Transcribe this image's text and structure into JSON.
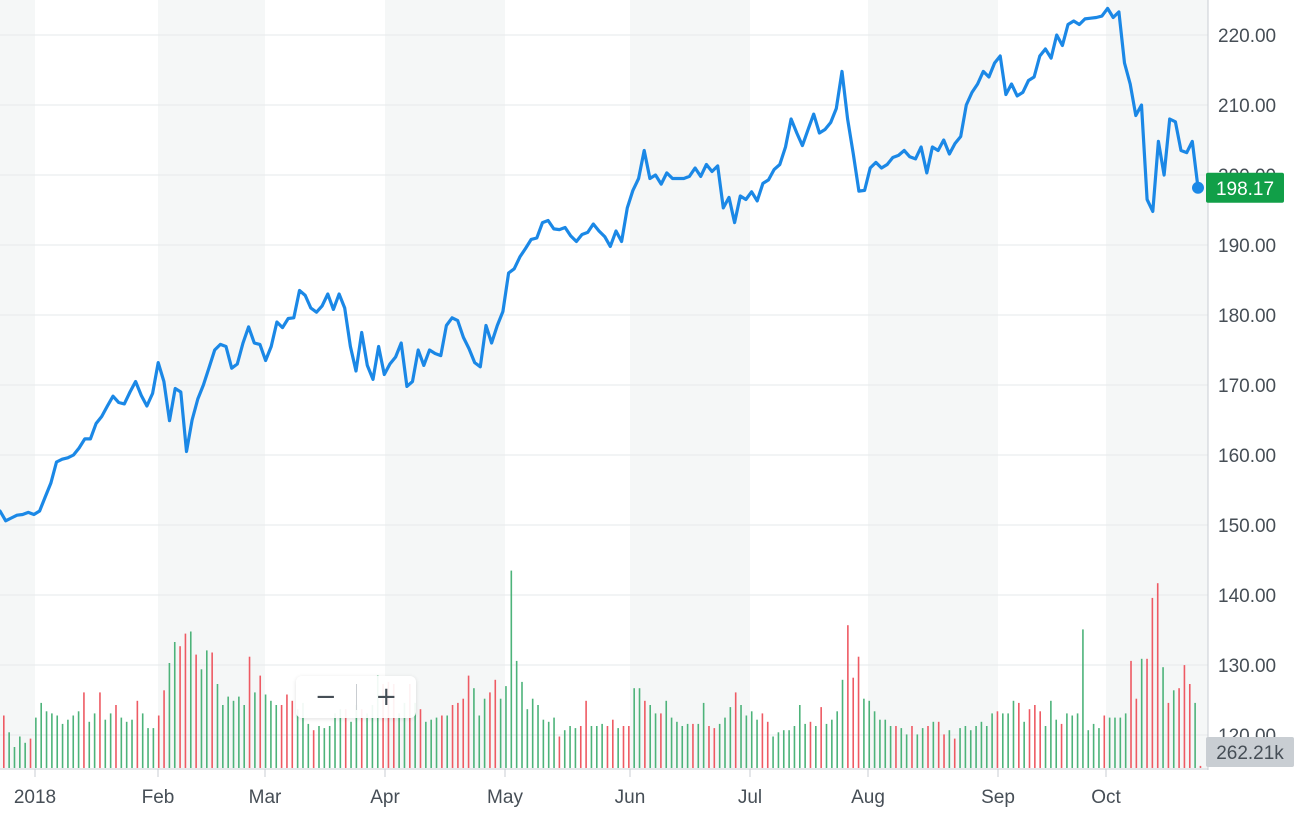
{
  "chart_data": {
    "type": "line",
    "series": [
      {
        "values": [
          152.0,
          150.6,
          151.0,
          151.4,
          151.5,
          151.8,
          151.5,
          152.0,
          154.0,
          156.0,
          159.0,
          159.4,
          159.6,
          160.0,
          161.0,
          162.3,
          162.3,
          164.5,
          165.5,
          167.0,
          168.4,
          167.5,
          167.3,
          169.0,
          170.5,
          168.5,
          167.0,
          168.8,
          173.2,
          170.5,
          164.9,
          169.5,
          169.0,
          160.5,
          165.0,
          168.0,
          170.0,
          172.5,
          175.0,
          175.8,
          175.5,
          172.4,
          173.0,
          176.0,
          178.3,
          176.0,
          175.8,
          173.5,
          175.5,
          179.0,
          178.2,
          179.5,
          179.6,
          183.5,
          182.8,
          181.0,
          180.4,
          181.3,
          183.0,
          180.8,
          183.0,
          181.0,
          175.5,
          172.0,
          177.5,
          172.8,
          170.8,
          175.5,
          171.5,
          173.0,
          174.0,
          176.0,
          169.8,
          170.5,
          175.0,
          172.8,
          175.0,
          174.5,
          174.2,
          178.5,
          179.6,
          179.2,
          176.8,
          175.2,
          173.2,
          172.6,
          178.5,
          176.0,
          178.5,
          180.5,
          186.0,
          186.6,
          188.3,
          189.5,
          190.8,
          191.0,
          193.2,
          193.5,
          192.3,
          192.2,
          192.5,
          191.3,
          190.5,
          191.5,
          191.8,
          193.0,
          192.0,
          191.2,
          189.8,
          192.0,
          190.5,
          195.3,
          197.8,
          199.5,
          203.5,
          199.5,
          200.0,
          198.7,
          200.3,
          199.5,
          199.5,
          199.5,
          199.8,
          201.0,
          199.8,
          201.5,
          200.5,
          201.3,
          195.3,
          196.8,
          193.2,
          197.0,
          196.5,
          197.6,
          196.3,
          198.8,
          199.3,
          200.8,
          201.5,
          204.0,
          208.0,
          206.0,
          204.2,
          206.5,
          208.7,
          206.0,
          206.5,
          207.5,
          209.5,
          214.8,
          208.0,
          203.0,
          197.7,
          197.8,
          201.0,
          201.8,
          201.0,
          201.5,
          202.5,
          202.8,
          203.5,
          202.6,
          202.3,
          204.0,
          200.3,
          204.0,
          203.5,
          205.0,
          203.0,
          204.5,
          205.5,
          210.0,
          211.8,
          213.0,
          214.8,
          214.0,
          216.0,
          217.0,
          211.5,
          213.0,
          211.3,
          211.8,
          213.5,
          214.0,
          217.0,
          218.0,
          216.7,
          220.0,
          218.5,
          221.5,
          222.0,
          221.5,
          222.3,
          222.4,
          222.5,
          222.7,
          223.8,
          222.5,
          223.3,
          216.0,
          213.0,
          208.5,
          210.0,
          196.5,
          194.8,
          204.8,
          200.0,
          208.0,
          207.6,
          203.5,
          203.2,
          204.8,
          198.2
        ],
        "color": "#1b88e6"
      }
    ],
    "volume": [
      {
        "h": 0.25,
        "up": false
      },
      {
        "h": 0.17,
        "up": true
      },
      {
        "h": 0.1,
        "up": true
      },
      {
        "h": 0.15,
        "up": true
      },
      {
        "h": 0.12,
        "up": true
      },
      {
        "h": 0.14,
        "up": false
      },
      {
        "h": 0.24,
        "up": true
      },
      {
        "h": 0.31,
        "up": true
      },
      {
        "h": 0.27,
        "up": true
      },
      {
        "h": 0.26,
        "up": true
      },
      {
        "h": 0.25,
        "up": true
      },
      {
        "h": 0.21,
        "up": true
      },
      {
        "h": 0.23,
        "up": true
      },
      {
        "h": 0.25,
        "up": true
      },
      {
        "h": 0.27,
        "up": true
      },
      {
        "h": 0.36,
        "up": false
      },
      {
        "h": 0.22,
        "up": true
      },
      {
        "h": 0.26,
        "up": true
      },
      {
        "h": 0.36,
        "up": false
      },
      {
        "h": 0.23,
        "up": true
      },
      {
        "h": 0.26,
        "up": true
      },
      {
        "h": 0.3,
        "up": false
      },
      {
        "h": 0.24,
        "up": true
      },
      {
        "h": 0.22,
        "up": true
      },
      {
        "h": 0.23,
        "up": true
      },
      {
        "h": 0.32,
        "up": false
      },
      {
        "h": 0.26,
        "up": true
      },
      {
        "h": 0.19,
        "up": true
      },
      {
        "h": 0.19,
        "up": true
      },
      {
        "h": 0.25,
        "up": false
      },
      {
        "h": 0.37,
        "up": false
      },
      {
        "h": 0.5,
        "up": true
      },
      {
        "h": 0.6,
        "up": true
      },
      {
        "h": 0.58,
        "up": false
      },
      {
        "h": 0.64,
        "up": false
      },
      {
        "h": 0.65,
        "up": true
      },
      {
        "h": 0.54,
        "up": false
      },
      {
        "h": 0.47,
        "up": true
      },
      {
        "h": 0.56,
        "up": true
      },
      {
        "h": 0.55,
        "up": false
      },
      {
        "h": 0.4,
        "up": true
      },
      {
        "h": 0.3,
        "up": true
      },
      {
        "h": 0.34,
        "up": true
      },
      {
        "h": 0.32,
        "up": true
      },
      {
        "h": 0.34,
        "up": true
      },
      {
        "h": 0.3,
        "up": true
      },
      {
        "h": 0.53,
        "up": false
      },
      {
        "h": 0.36,
        "up": true
      },
      {
        "h": 0.44,
        "up": false
      },
      {
        "h": 0.35,
        "up": true
      },
      {
        "h": 0.32,
        "up": true
      },
      {
        "h": 0.3,
        "up": true
      },
      {
        "h": 0.3,
        "up": false
      },
      {
        "h": 0.35,
        "up": false
      },
      {
        "h": 0.32,
        "up": false
      },
      {
        "h": 0.28,
        "up": true
      },
      {
        "h": 0.31,
        "up": true
      },
      {
        "h": 0.21,
        "up": true
      },
      {
        "h": 0.18,
        "up": false
      },
      {
        "h": 0.2,
        "up": true
      },
      {
        "h": 0.19,
        "up": true
      },
      {
        "h": 0.2,
        "up": true
      },
      {
        "h": 0.26,
        "up": true
      },
      {
        "h": 0.28,
        "up": true
      },
      {
        "h": 0.28,
        "up": false
      },
      {
        "h": 0.22,
        "up": true
      },
      {
        "h": 0.3,
        "up": true
      },
      {
        "h": 0.28,
        "up": false
      },
      {
        "h": 0.26,
        "up": true
      },
      {
        "h": 0.3,
        "up": true
      },
      {
        "h": 0.44,
        "up": true
      },
      {
        "h": 0.4,
        "up": false
      },
      {
        "h": 0.41,
        "up": false
      },
      {
        "h": 0.4,
        "up": false
      },
      {
        "h": 0.26,
        "up": true
      },
      {
        "h": 0.31,
        "up": true
      },
      {
        "h": 0.4,
        "up": false
      },
      {
        "h": 0.31,
        "up": true
      },
      {
        "h": 0.28,
        "up": false
      },
      {
        "h": 0.22,
        "up": true
      },
      {
        "h": 0.23,
        "up": true
      },
      {
        "h": 0.24,
        "up": true
      },
      {
        "h": 0.25,
        "up": false
      },
      {
        "h": 0.25,
        "up": true
      },
      {
        "h": 0.3,
        "up": false
      },
      {
        "h": 0.31,
        "up": false
      },
      {
        "h": 0.33,
        "up": false
      },
      {
        "h": 0.44,
        "up": false
      },
      {
        "h": 0.38,
        "up": true
      },
      {
        "h": 0.25,
        "up": true
      },
      {
        "h": 0.33,
        "up": true
      },
      {
        "h": 0.36,
        "up": false
      },
      {
        "h": 0.42,
        "up": false
      },
      {
        "h": 0.33,
        "up": true
      },
      {
        "h": 0.39,
        "up": true
      },
      {
        "h": 0.94,
        "up": true
      },
      {
        "h": 0.51,
        "up": true
      },
      {
        "h": 0.41,
        "up": true
      },
      {
        "h": 0.28,
        "up": true
      },
      {
        "h": 0.33,
        "up": true
      },
      {
        "h": 0.3,
        "up": true
      },
      {
        "h": 0.23,
        "up": true
      },
      {
        "h": 0.22,
        "up": true
      },
      {
        "h": 0.24,
        "up": true
      },
      {
        "h": 0.15,
        "up": false
      },
      {
        "h": 0.18,
        "up": true
      },
      {
        "h": 0.2,
        "up": true
      },
      {
        "h": 0.19,
        "up": true
      },
      {
        "h": 0.2,
        "up": false
      },
      {
        "h": 0.32,
        "up": false
      },
      {
        "h": 0.2,
        "up": true
      },
      {
        "h": 0.2,
        "up": true
      },
      {
        "h": 0.21,
        "up": true
      },
      {
        "h": 0.2,
        "up": false
      },
      {
        "h": 0.23,
        "up": false
      },
      {
        "h": 0.19,
        "up": true
      },
      {
        "h": 0.2,
        "up": false
      },
      {
        "h": 0.2,
        "up": false
      },
      {
        "h": 0.38,
        "up": true
      },
      {
        "h": 0.38,
        "up": true
      },
      {
        "h": 0.32,
        "up": false
      },
      {
        "h": 0.3,
        "up": true
      },
      {
        "h": 0.26,
        "up": true
      },
      {
        "h": 0.26,
        "up": false
      },
      {
        "h": 0.32,
        "up": true
      },
      {
        "h": 0.24,
        "up": true
      },
      {
        "h": 0.22,
        "up": true
      },
      {
        "h": 0.2,
        "up": true
      },
      {
        "h": 0.21,
        "up": true
      },
      {
        "h": 0.21,
        "up": false
      },
      {
        "h": 0.21,
        "up": true
      },
      {
        "h": 0.31,
        "up": true
      },
      {
        "h": 0.2,
        "up": false
      },
      {
        "h": 0.19,
        "up": false
      },
      {
        "h": 0.21,
        "up": true
      },
      {
        "h": 0.24,
        "up": true
      },
      {
        "h": 0.29,
        "up": true
      },
      {
        "h": 0.36,
        "up": false
      },
      {
        "h": 0.3,
        "up": true
      },
      {
        "h": 0.25,
        "up": true
      },
      {
        "h": 0.27,
        "up": true
      },
      {
        "h": 0.23,
        "up": true
      },
      {
        "h": 0.26,
        "up": false
      },
      {
        "h": 0.22,
        "up": false
      },
      {
        "h": 0.15,
        "up": true
      },
      {
        "h": 0.17,
        "up": true
      },
      {
        "h": 0.18,
        "up": true
      },
      {
        "h": 0.18,
        "up": true
      },
      {
        "h": 0.2,
        "up": true
      },
      {
        "h": 0.3,
        "up": true
      },
      {
        "h": 0.21,
        "up": true
      },
      {
        "h": 0.22,
        "up": false
      },
      {
        "h": 0.2,
        "up": true
      },
      {
        "h": 0.29,
        "up": false
      },
      {
        "h": 0.21,
        "up": true
      },
      {
        "h": 0.23,
        "up": true
      },
      {
        "h": 0.27,
        "up": true
      },
      {
        "h": 0.42,
        "up": true
      },
      {
        "h": 0.68,
        "up": false
      },
      {
        "h": 0.43,
        "up": false
      },
      {
        "h": 0.53,
        "up": false
      },
      {
        "h": 0.33,
        "up": true
      },
      {
        "h": 0.32,
        "up": true
      },
      {
        "h": 0.27,
        "up": true
      },
      {
        "h": 0.23,
        "up": true
      },
      {
        "h": 0.23,
        "up": true
      },
      {
        "h": 0.2,
        "up": true
      },
      {
        "h": 0.2,
        "up": false
      },
      {
        "h": 0.19,
        "up": true
      },
      {
        "h": 0.16,
        "up": true
      },
      {
        "h": 0.2,
        "up": false
      },
      {
        "h": 0.16,
        "up": true
      },
      {
        "h": 0.19,
        "up": true
      },
      {
        "h": 0.2,
        "up": false
      },
      {
        "h": 0.22,
        "up": true
      },
      {
        "h": 0.22,
        "up": false
      },
      {
        "h": 0.16,
        "up": false
      },
      {
        "h": 0.18,
        "up": true
      },
      {
        "h": 0.14,
        "up": false
      },
      {
        "h": 0.19,
        "up": true
      },
      {
        "h": 0.2,
        "up": true
      },
      {
        "h": 0.18,
        "up": true
      },
      {
        "h": 0.2,
        "up": true
      },
      {
        "h": 0.22,
        "up": true
      },
      {
        "h": 0.2,
        "up": true
      },
      {
        "h": 0.26,
        "up": true
      },
      {
        "h": 0.27,
        "up": false
      },
      {
        "h": 0.26,
        "up": true
      },
      {
        "h": 0.26,
        "up": true
      },
      {
        "h": 0.32,
        "up": true
      },
      {
        "h": 0.31,
        "up": false
      },
      {
        "h": 0.22,
        "up": true
      },
      {
        "h": 0.28,
        "up": false
      },
      {
        "h": 0.3,
        "up": false
      },
      {
        "h": 0.27,
        "up": false
      },
      {
        "h": 0.2,
        "up": true
      },
      {
        "h": 0.32,
        "up": true
      },
      {
        "h": 0.23,
        "up": true
      },
      {
        "h": 0.21,
        "up": false
      },
      {
        "h": 0.26,
        "up": true
      },
      {
        "h": 0.25,
        "up": true
      },
      {
        "h": 0.26,
        "up": true
      },
      {
        "h": 0.66,
        "up": true
      },
      {
        "h": 0.18,
        "up": true
      },
      {
        "h": 0.21,
        "up": true
      },
      {
        "h": 0.19,
        "up": true
      },
      {
        "h": 0.25,
        "up": false
      },
      {
        "h": 0.24,
        "up": true
      },
      {
        "h": 0.24,
        "up": true
      },
      {
        "h": 0.24,
        "up": true
      },
      {
        "h": 0.26,
        "up": true
      },
      {
        "h": 0.51,
        "up": false
      },
      {
        "h": 0.33,
        "up": false
      },
      {
        "h": 0.52,
        "up": true
      },
      {
        "h": 0.52,
        "up": false
      },
      {
        "h": 0.81,
        "up": false
      },
      {
        "h": 0.88,
        "up": false
      },
      {
        "h": 0.48,
        "up": true
      },
      {
        "h": 0.31,
        "up": false
      },
      {
        "h": 0.37,
        "up": true
      },
      {
        "h": 0.38,
        "up": false
      },
      {
        "h": 0.49,
        "up": false
      },
      {
        "h": 0.4,
        "up": false
      },
      {
        "h": 0.31,
        "up": true
      },
      {
        "h": 0.01,
        "up": false
      }
    ],
    "current_value": 198.17,
    "current_label": "198.17",
    "current_volume_label": "262.21k",
    "y_ticks": [
      "220.00",
      "210.00",
      "200.00",
      "190.00",
      "180.00",
      "170.00",
      "160.00",
      "150.00",
      "140.00",
      "130.00",
      "120.00"
    ],
    "x_ticks": [
      "2018",
      "Feb",
      "Mar",
      "Apr",
      "May",
      "Jun",
      "Jul",
      "Aug",
      "Sep",
      "Oct"
    ],
    "ylim": [
      118.0,
      224.5
    ],
    "grid": true,
    "colors": {
      "line": "#1b88e6",
      "volume_up": "#4db37a",
      "volume_down": "#ee5a63",
      "price_badge": "#119f48",
      "volume_badge": "#c9ced3",
      "band": "#f5f7f7",
      "axis_text": "#464e56"
    }
  },
  "zoom": {
    "minus_label": "−",
    "plus_label": "+"
  }
}
